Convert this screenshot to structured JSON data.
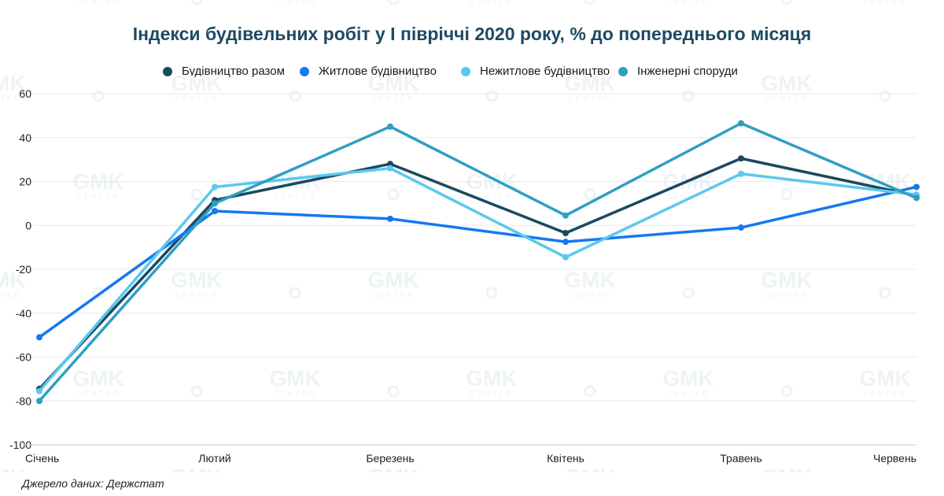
{
  "page": {
    "title": "Індекси будівельних робіт у I півріччі 2020 року, % до попереднього місяця",
    "source": "Джерело даних: Держстат",
    "watermark_main": "GMK",
    "watermark_sub": "CENTER"
  },
  "chart_data": {
    "type": "line",
    "title": "Індекси будівельних робіт у I півріччі 2020 року, % до попереднього місяця",
    "categories": [
      "Січень",
      "Лютий",
      "Березень",
      "Квітень",
      "Травень",
      "Червень"
    ],
    "ylim": [
      -100,
      60
    ],
    "yticks": [
      60,
      40,
      20,
      0,
      -20,
      -40,
      -60,
      -80,
      -100
    ],
    "ytick_labels": [
      "60",
      "40",
      "20",
      "0",
      "-20",
      "-40",
      "-60",
      "-80",
      "-100"
    ],
    "grid": true,
    "legend_position": "top",
    "series": [
      {
        "name": "Будівництво разом",
        "color": "#1b4862",
        "values": [
          -74.5,
          11.5,
          28.0,
          -3.5,
          30.5,
          13.5
        ]
      },
      {
        "name": "Житлове будівництво",
        "color": "#1479f0",
        "values": [
          -51.0,
          6.5,
          3.0,
          -7.5,
          -1.0,
          17.5
        ]
      },
      {
        "name": "Нежитлове будівництво",
        "color": "#5bc8ee",
        "values": [
          -75.5,
          17.5,
          26.0,
          -14.5,
          23.5,
          14.0
        ]
      },
      {
        "name": "Інженерні споруди",
        "color": "#2e9fc2",
        "values": [
          -80.0,
          10.0,
          45.0,
          4.5,
          46.5,
          12.5
        ]
      }
    ]
  }
}
